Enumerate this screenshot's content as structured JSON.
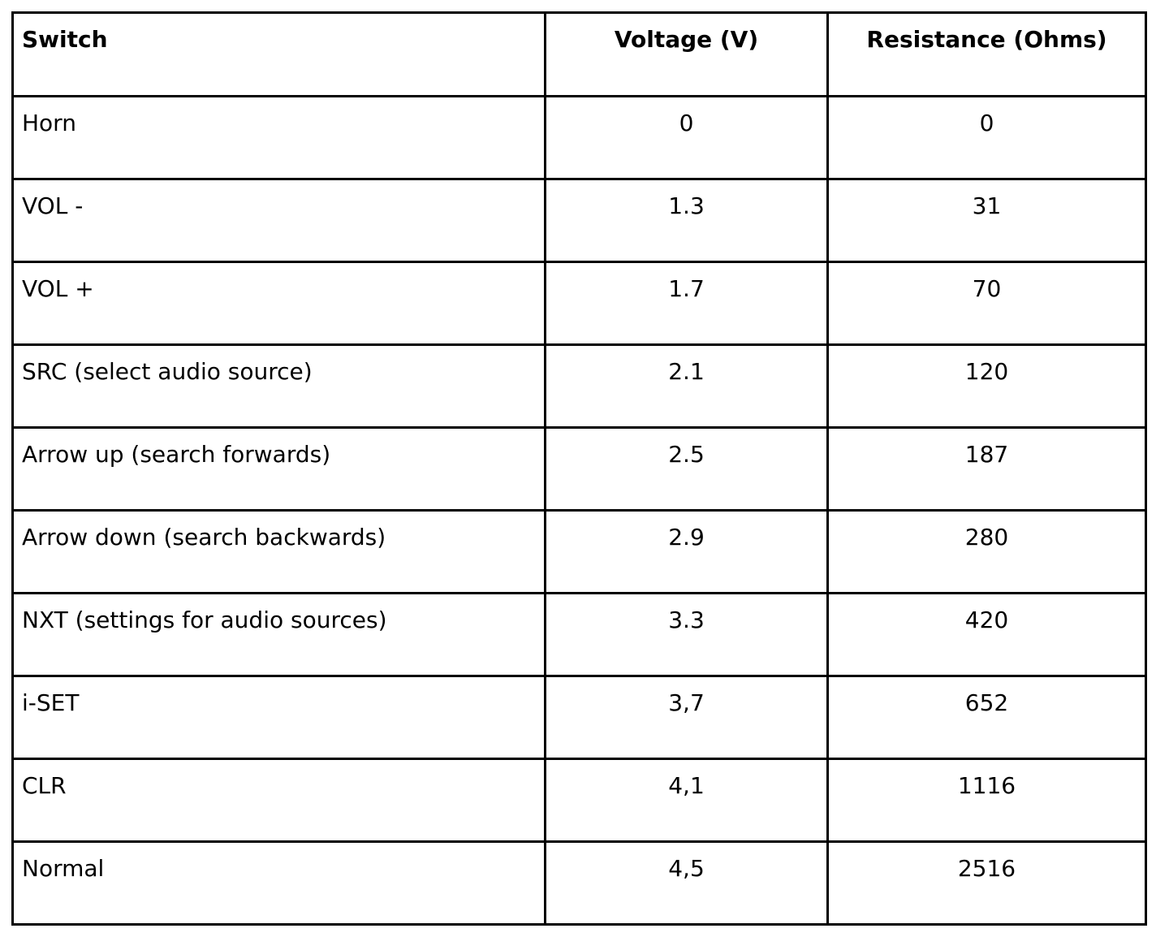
{
  "table": {
    "columns": [
      {
        "label": "Switch"
      },
      {
        "label": "Voltage (V)"
      },
      {
        "label": "Resistance (Ohms)"
      }
    ],
    "rows": [
      {
        "switch": "Horn",
        "voltage": "0",
        "resistance": "0"
      },
      {
        "switch": "VOL -",
        "voltage": "1.3",
        "resistance": "31"
      },
      {
        "switch": "VOL +",
        "voltage": "1.7",
        "resistance": "70"
      },
      {
        "switch": "SRC (select audio source)",
        "voltage": "2.1",
        "resistance": "120"
      },
      {
        "switch": "Arrow up (search forwards)",
        "voltage": "2.5",
        "resistance": "187"
      },
      {
        "switch": "Arrow down (search backwards)",
        "voltage": "2.9",
        "resistance": "280"
      },
      {
        "switch": "NXT (settings for audio sources)",
        "voltage": "3.3",
        "resistance": "420"
      },
      {
        "switch": "i-SET",
        "voltage": "3,7",
        "resistance": "652"
      },
      {
        "switch": "CLR",
        "voltage": "4,1",
        "resistance": "1116"
      },
      {
        "switch": "Normal",
        "voltage": "4,5",
        "resistance": "2516"
      }
    ]
  }
}
